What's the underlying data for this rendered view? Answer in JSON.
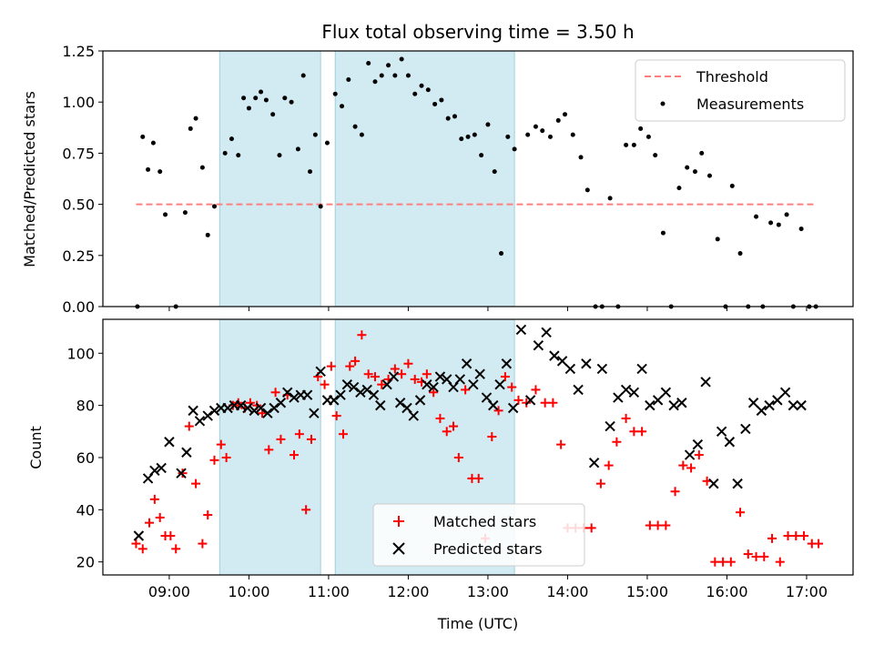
{
  "chart_data": [
    {
      "type": "scatter",
      "title": "Flux total observing time = 3.50 h",
      "xlabel": "",
      "ylabel": "Matched/Predicted stars",
      "xlim": [
        "08:10",
        "17:35"
      ],
      "ylim": [
        0,
        1.25
      ],
      "yticks": [
        "0.00",
        "0.25",
        "0.50",
        "0.75",
        "1.00",
        "1.25"
      ],
      "xticks": [
        "09:00",
        "10:00",
        "11:00",
        "12:00",
        "13:00",
        "14:00",
        "15:00",
        "16:00",
        "17:00"
      ],
      "show_xticklabels": false,
      "shaded_spans": [
        [
          "09:38",
          "10:54"
        ],
        [
          "11:05",
          "13:20"
        ]
      ],
      "shade_color": "#add8e6",
      "threshold": {
        "name": "Threshold",
        "value": 0.5,
        "x_range": [
          "08:35",
          "17:07"
        ],
        "color": "#ff7f7f",
        "style": "dashed"
      },
      "legend": {
        "placement": "upper-right",
        "entries": [
          "Threshold",
          "Measurements"
        ]
      },
      "series": [
        {
          "name": "Measurements",
          "marker": "dot",
          "color": "#000000",
          "x": [
            "08:36",
            "08:40",
            "08:44",
            "08:48",
            "08:53",
            "08:57",
            "09:05",
            "09:12",
            "09:16",
            "09:20",
            "09:25",
            "09:29",
            "09:34",
            "09:42",
            "09:47",
            "09:52",
            "09:56",
            "10:00",
            "10:05",
            "10:09",
            "10:13",
            "10:18",
            "10:23",
            "10:27",
            "10:32",
            "10:37",
            "10:41",
            "10:46",
            "10:50",
            "10:54",
            "10:59",
            "11:05",
            "11:10",
            "11:15",
            "11:20",
            "11:25",
            "11:30",
            "11:35",
            "11:40",
            "11:45",
            "11:50",
            "11:55",
            "12:00",
            "12:05",
            "12:10",
            "12:15",
            "12:20",
            "12:25",
            "12:30",
            "12:35",
            "12:40",
            "12:45",
            "12:50",
            "12:55",
            "13:00",
            "13:05",
            "13:10",
            "13:15",
            "13:20",
            "13:30",
            "13:36",
            "13:41",
            "13:47",
            "13:53",
            "13:58",
            "14:04",
            "14:10",
            "14:15",
            "14:21",
            "14:26",
            "14:32",
            "14:38",
            "14:44",
            "14:50",
            "14:55",
            "15:01",
            "15:06",
            "15:12",
            "15:18",
            "15:24",
            "15:30",
            "15:36",
            "15:41",
            "15:47",
            "15:53",
            "15:59",
            "16:04",
            "16:10",
            "16:16",
            "16:22",
            "16:27",
            "16:33",
            "16:39",
            "16:45",
            "16:50",
            "16:56",
            "17:02",
            "17:07"
          ],
          "y": [
            0.0,
            0.83,
            0.67,
            0.8,
            0.66,
            0.45,
            0.0,
            0.46,
            0.87,
            0.92,
            0.68,
            0.35,
            0.49,
            0.75,
            0.82,
            0.74,
            1.02,
            0.97,
            1.02,
            1.05,
            1.01,
            0.94,
            0.74,
            1.02,
            1.0,
            0.77,
            1.13,
            0.66,
            0.84,
            0.49,
            0.8,
            1.04,
            0.98,
            1.11,
            0.88,
            0.84,
            1.19,
            1.1,
            1.13,
            1.18,
            1.13,
            1.21,
            1.13,
            1.04,
            1.08,
            1.06,
            0.99,
            1.01,
            0.92,
            0.93,
            0.82,
            0.83,
            0.84,
            0.74,
            0.89,
            0.66,
            0.26,
            0.83,
            0.77,
            0.84,
            0.88,
            0.86,
            0.83,
            0.91,
            0.94,
            0.84,
            0.73,
            0.57,
            0.0,
            0.0,
            0.53,
            0.0,
            0.79,
            0.79,
            0.87,
            0.83,
            0.74,
            0.36,
            0.0,
            0.58,
            0.68,
            0.66,
            0.75,
            0.64,
            0.33,
            0.0,
            0.59,
            0.26,
            0.0,
            0.44,
            0.0,
            0.41,
            0.4,
            0.45,
            0.0,
            0.38,
            0.0,
            0.0
          ]
        }
      ]
    },
    {
      "type": "scatter",
      "title": "",
      "xlabel": "Time (UTC)",
      "ylabel": "Count",
      "xlim": [
        "08:10",
        "17:35"
      ],
      "ylim": [
        15,
        113
      ],
      "yticks": [
        "20",
        "40",
        "60",
        "80",
        "100"
      ],
      "xticks": [
        "09:00",
        "10:00",
        "11:00",
        "12:00",
        "13:00",
        "14:00",
        "15:00",
        "16:00",
        "17:00"
      ],
      "show_xticklabels": true,
      "shaded_spans": [
        [
          "09:38",
          "10:54"
        ],
        [
          "11:05",
          "13:20"
        ]
      ],
      "shade_color": "#add8e6",
      "legend": {
        "placement": "lower-center",
        "entries": [
          "Matched stars",
          "Predicted stars"
        ]
      },
      "series": [
        {
          "name": "Matched stars",
          "marker": "plus",
          "color": "#ff0000",
          "x": [
            "08:35",
            "08:40",
            "08:45",
            "08:49",
            "08:53",
            "08:57",
            "09:01",
            "09:05",
            "09:10",
            "09:15",
            "09:20",
            "09:25",
            "09:29",
            "09:34",
            "09:39",
            "09:43",
            "09:48",
            "09:52",
            "09:57",
            "10:01",
            "10:06",
            "10:10",
            "10:15",
            "10:20",
            "10:24",
            "10:29",
            "10:34",
            "10:38",
            "10:43",
            "10:47",
            "10:52",
            "10:57",
            "11:02",
            "11:06",
            "11:11",
            "11:16",
            "11:20",
            "11:25",
            "11:30",
            "11:35",
            "11:40",
            "11:45",
            "11:50",
            "11:55",
            "12:00",
            "12:05",
            "12:10",
            "12:14",
            "12:19",
            "12:24",
            "12:29",
            "12:34",
            "12:38",
            "12:43",
            "12:48",
            "12:53",
            "12:58",
            "13:03",
            "13:08",
            "13:13",
            "13:18",
            "13:23",
            "13:29",
            "13:36",
            "13:43",
            "13:49",
            "13:55",
            "14:00",
            "14:06",
            "14:12",
            "14:18",
            "14:25",
            "14:31",
            "14:37",
            "14:44",
            "14:50",
            "14:56",
            "15:02",
            "15:08",
            "15:14",
            "15:21",
            "15:27",
            "15:33",
            "15:39",
            "15:45",
            "15:51",
            "15:57",
            "16:03",
            "16:10",
            "16:16",
            "16:22",
            "16:28",
            "16:34",
            "16:40",
            "16:46",
            "16:52",
            "16:58",
            "17:04",
            "17:09"
          ],
          "y": [
            27,
            25,
            35,
            44,
            37,
            30,
            30,
            25,
            54,
            72,
            50,
            27,
            38,
            59,
            65,
            60,
            80,
            81,
            79,
            81,
            80,
            77,
            63,
            85,
            67,
            84,
            61,
            69,
            40,
            67,
            91,
            88,
            95,
            76,
            69,
            95,
            97,
            107,
            92,
            91,
            88,
            90,
            94,
            92,
            96,
            90,
            89,
            92,
            85,
            75,
            70,
            72,
            60,
            86,
            52,
            52,
            29,
            68,
            78,
            91,
            87,
            82,
            81,
            86,
            81,
            81,
            65,
            33,
            33,
            33,
            33,
            50,
            57,
            66,
            75,
            70,
            70,
            34,
            34,
            34,
            47,
            57,
            56,
            61,
            51,
            20,
            20,
            20,
            39,
            23,
            22,
            22,
            29,
            20,
            30,
            30,
            30,
            27,
            27
          ]
        },
        {
          "name": "Predicted stars",
          "marker": "x",
          "color": "#000000",
          "x": [
            "08:37",
            "08:44",
            "08:49",
            "08:54",
            "09:00",
            "09:09",
            "09:13",
            "09:18",
            "09:23",
            "09:29",
            "09:34",
            "09:39",
            "09:44",
            "09:49",
            "09:54",
            "09:59",
            "10:04",
            "10:09",
            "10:14",
            "10:19",
            "10:24",
            "10:29",
            "10:34",
            "10:39",
            "10:44",
            "10:49",
            "10:54",
            "10:59",
            "11:04",
            "11:09",
            "11:14",
            "11:19",
            "11:24",
            "11:29",
            "11:34",
            "11:39",
            "11:44",
            "11:49",
            "11:54",
            "11:59",
            "12:04",
            "12:09",
            "12:14",
            "12:19",
            "12:24",
            "12:29",
            "12:34",
            "12:39",
            "12:44",
            "12:49",
            "12:54",
            "12:59",
            "13:04",
            "13:09",
            "13:14",
            "13:19",
            "13:25",
            "13:32",
            "13:38",
            "13:44",
            "13:50",
            "13:56",
            "14:02",
            "14:08",
            "14:14",
            "14:20",
            "14:26",
            "14:32",
            "14:38",
            "14:44",
            "14:50",
            "14:56",
            "15:02",
            "15:08",
            "15:14",
            "15:20",
            "15:26",
            "15:32",
            "15:38",
            "15:44",
            "15:50",
            "15:56",
            "16:02",
            "16:08",
            "16:14",
            "16:20",
            "16:26",
            "16:32",
            "16:38",
            "16:44",
            "16:50",
            "16:56"
          ],
          "y": [
            30,
            52,
            55,
            56,
            66,
            54,
            62,
            78,
            74,
            76,
            78,
            79,
            79,
            80,
            80,
            79,
            78,
            79,
            77,
            79,
            81,
            85,
            83,
            84,
            84,
            77,
            93,
            82,
            82,
            84,
            88,
            87,
            85,
            86,
            84,
            80,
            88,
            91,
            81,
            79,
            76,
            82,
            88,
            87,
            91,
            90,
            87,
            90,
            96,
            88,
            92,
            83,
            80,
            88,
            96,
            79,
            109,
            82,
            103,
            108,
            99,
            97,
            94,
            86,
            96,
            58,
            94,
            72,
            83,
            86,
            85,
            94,
            80,
            82,
            85,
            80,
            81,
            61,
            65,
            89,
            50,
            70,
            66,
            50,
            71,
            81,
            78,
            80,
            82,
            85,
            80,
            80
          ]
        }
      ]
    }
  ]
}
